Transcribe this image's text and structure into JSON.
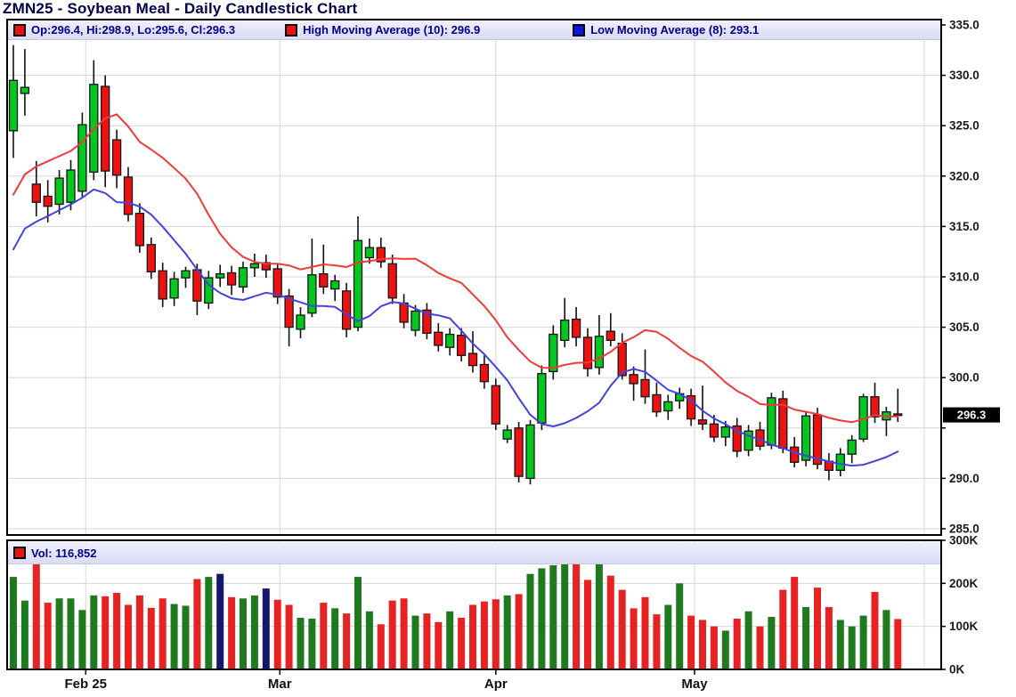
{
  "title": "ZMN25 - Soybean Meal - Daily Candlestick Chart",
  "legend": {
    "main": [
      {
        "swatch": "#ee1111",
        "label": "Op:296.4, Hi:298.9, Lo:295.6, Cl:296.3"
      },
      {
        "swatch": "#ee1111",
        "label": "High Moving Average (10): 296.9"
      },
      {
        "swatch": "#1111ee",
        "label": "Low Moving Average (8): 293.1"
      }
    ],
    "volume": [
      {
        "swatch": "#ee1111",
        "label": "Vol: 116,852"
      }
    ]
  },
  "colors": {
    "candle_up": "#00c81e",
    "candle_down": "#ee1111",
    "candle_border": "#151515",
    "wick": "#111111",
    "volume_up": "#1f7a1f",
    "volume_down": "#e62222",
    "volume_unchanged": "#16166e",
    "grid": "#d6d6d6",
    "panel_border": "#000000",
    "axis_text": "#1b1b1b",
    "tag_bg": "#000000",
    "tag_text": "#ffffff",
    "title_color": "#00004a",
    "legend_text": "#00008b"
  },
  "chart_data": {
    "type": "candlestick",
    "title": "ZMN25 - Soybean Meal - Daily Candlestick Chart",
    "symbol": "ZMN25",
    "price_axis": {
      "min": 285,
      "max": 335,
      "ticks": [
        {
          "label": "335.0",
          "value": 335
        },
        {
          "label": "330.0",
          "value": 330
        },
        {
          "label": "325.0",
          "value": 325
        },
        {
          "label": "320.0",
          "value": 320
        },
        {
          "label": "315.0",
          "value": 315
        },
        {
          "label": "310.0",
          "value": 310
        },
        {
          "label": "305.0",
          "value": 305
        },
        {
          "label": "300.0",
          "value": 300
        },
        {
          "label": "",
          "value": 295
        },
        {
          "label": "290.0",
          "value": 290
        },
        {
          "label": "285.0",
          "value": 285
        }
      ],
      "last_price": 296.3,
      "last_price_label": "296.3"
    },
    "volume_axis": {
      "unit": "K",
      "ticks": [
        {
          "label": "300K",
          "value": 300
        },
        {
          "label": "200K",
          "value": 200
        },
        {
          "label": "100K",
          "value": 100
        },
        {
          "label": "0K",
          "value": 0
        }
      ]
    },
    "x_axis": {
      "month_ticks": [
        {
          "label": "Feb 25",
          "index": 6.3
        },
        {
          "label": "Mar",
          "index": 23.2
        },
        {
          "label": "Apr",
          "index": 42.0
        },
        {
          "label": "May",
          "index": 59.3
        },
        {
          "label": "",
          "index": 79.3
        }
      ]
    },
    "ohlc_legend_values": {
      "open": 296.4,
      "high": 298.9,
      "low": 295.6,
      "close": 296.3
    },
    "last_volume": 116852,
    "candles": [
      [
        324.5,
        333.0,
        321.8,
        329.5,
        215
      ],
      [
        328.2,
        332.6,
        326.0,
        328.8,
        160
      ],
      [
        319.2,
        321.5,
        316.0,
        317.4,
        250
      ],
      [
        318.0,
        319.6,
        315.4,
        317.0,
        155
      ],
      [
        317.2,
        320.6,
        316.2,
        319.8,
        165
      ],
      [
        317.4,
        321.6,
        316.6,
        320.6,
        165
      ],
      [
        318.5,
        326.3,
        317.8,
        325.1,
        138
      ],
      [
        320.4,
        331.5,
        319.6,
        329.1,
        172
      ],
      [
        328.9,
        330.0,
        318.9,
        320.5,
        170
      ],
      [
        323.6,
        324.6,
        318.8,
        320.1,
        178
      ],
      [
        319.9,
        320.9,
        315.5,
        316.2,
        150
      ],
      [
        316.3,
        317.3,
        312.4,
        313.1,
        172
      ],
      [
        313.2,
        313.9,
        309.8,
        310.5,
        143
      ],
      [
        310.6,
        311.4,
        307.0,
        307.8,
        165
      ],
      [
        307.9,
        310.5,
        307.1,
        309.8,
        152
      ],
      [
        309.9,
        311.0,
        308.9,
        310.6,
        148
      ],
      [
        310.7,
        311.3,
        306.2,
        307.6,
        210
      ],
      [
        307.4,
        310.6,
        306.8,
        309.9,
        215
      ],
      [
        309.9,
        311.2,
        309.0,
        310.3,
        222
      ],
      [
        310.4,
        311.1,
        308.2,
        309.2,
        168
      ],
      [
        309.0,
        311.5,
        308.4,
        310.9,
        165
      ],
      [
        310.9,
        312.3,
        310.0,
        311.3,
        172
      ],
      [
        311.4,
        312.2,
        309.9,
        310.7,
        188
      ],
      [
        310.8,
        311.3,
        307.3,
        308.0,
        162
      ],
      [
        308.1,
        308.8,
        303.1,
        305.0,
        150
      ],
      [
        304.8,
        307.0,
        303.9,
        306.2,
        120
      ],
      [
        306.4,
        313.8,
        306.0,
        310.2,
        118
      ],
      [
        310.3,
        313.2,
        308.3,
        309.0,
        155
      ],
      [
        308.8,
        310.2,
        307.6,
        309.6,
        142
      ],
      [
        308.6,
        309.4,
        304.0,
        304.8,
        130
      ],
      [
        305.0,
        316.0,
        304.6,
        313.6,
        215
      ],
      [
        311.9,
        313.8,
        311.3,
        312.9,
        135
      ],
      [
        312.9,
        313.9,
        310.9,
        311.5,
        105
      ],
      [
        311.3,
        312.2,
        307.3,
        307.9,
        160
      ],
      [
        307.4,
        308.3,
        304.9,
        305.5,
        165
      ],
      [
        304.7,
        307.2,
        304.1,
        306.6,
        125
      ],
      [
        306.7,
        307.4,
        303.8,
        304.4,
        130
      ],
      [
        304.5,
        305.4,
        302.6,
        303.2,
        110
      ],
      [
        303.0,
        304.9,
        302.2,
        304.3,
        135
      ],
      [
        304.2,
        304.9,
        301.6,
        302.2,
        120
      ],
      [
        302.4,
        304.6,
        300.5,
        301.2,
        150
      ],
      [
        301.3,
        302.2,
        298.9,
        299.6,
        158
      ],
      [
        299.2,
        299.9,
        294.8,
        295.4,
        163
      ],
      [
        293.9,
        295.3,
        293.5,
        294.8,
        172
      ],
      [
        295.0,
        295.6,
        289.6,
        290.2,
        175
      ],
      [
        290.0,
        295.8,
        289.4,
        295.3,
        222
      ],
      [
        295.5,
        301.2,
        294.8,
        300.4,
        235
      ],
      [
        300.6,
        305.2,
        299.8,
        304.3,
        242
      ],
      [
        303.7,
        307.9,
        303.0,
        305.7,
        258
      ],
      [
        305.8,
        307.0,
        303.1,
        304.0,
        252
      ],
      [
        304.0,
        304.9,
        300.1,
        300.9,
        208
      ],
      [
        301.0,
        306.2,
        300.3,
        304.1,
        255
      ],
      [
        304.6,
        306.4,
        303.1,
        303.7,
        218
      ],
      [
        303.4,
        304.4,
        299.8,
        300.2,
        185
      ],
      [
        300.3,
        301.1,
        297.7,
        299.4,
        142
      ],
      [
        299.8,
        302.8,
        297.4,
        298.1,
        168
      ],
      [
        298.3,
        299.5,
        296.1,
        296.6,
        128
      ],
      [
        296.7,
        298.3,
        295.8,
        297.6,
        150
      ],
      [
        297.7,
        299.0,
        296.9,
        298.4,
        200
      ],
      [
        298.2,
        298.9,
        295.2,
        295.9,
        125
      ],
      [
        295.8,
        299.2,
        294.8,
        295.4,
        115
      ],
      [
        295.4,
        296.3,
        293.6,
        294.1,
        100
      ],
      [
        294.1,
        295.7,
        293.2,
        295.1,
        90
      ],
      [
        295.2,
        296.0,
        292.1,
        292.7,
        118
      ],
      [
        292.8,
        295.3,
        292.2,
        294.7,
        135
      ],
      [
        294.8,
        295.6,
        292.8,
        293.2,
        100
      ],
      [
        293.3,
        298.5,
        292.9,
        298.0,
        122
      ],
      [
        297.9,
        298.7,
        292.5,
        293.0,
        185
      ],
      [
        293.1,
        294.1,
        291.1,
        291.6,
        215
      ],
      [
        291.8,
        296.7,
        291.2,
        296.2,
        145
      ],
      [
        296.3,
        297.0,
        290.9,
        291.4,
        190
      ],
      [
        291.7,
        292.5,
        289.8,
        290.8,
        145
      ],
      [
        290.8,
        293.0,
        290.2,
        292.4,
        115
      ],
      [
        292.4,
        294.3,
        291.5,
        293.8,
        100
      ],
      [
        293.9,
        298.4,
        293.6,
        298.1,
        125
      ],
      [
        298.1,
        299.5,
        295.5,
        296.1,
        180
      ],
      [
        295.8,
        297.1,
        294.2,
        296.6,
        138
      ],
      [
        296.4,
        298.9,
        295.6,
        296.3,
        117
      ]
    ],
    "volume_unchanged_indexes": [
      18,
      22
    ],
    "moving_averages": [
      {
        "name": "High Moving Average (10)",
        "period": 10,
        "source": "high",
        "color": "#f03a3a",
        "seed": [
          312.5,
          313.5,
          314.5,
          315.5,
          316.5,
          317.5,
          318.5,
          319.5,
          320.5
        ],
        "last_value": 296.9
      },
      {
        "name": "Low Moving Average (8)",
        "period": 8,
        "source": "low",
        "color": "#4343de",
        "seed": [
          309.5,
          310.5,
          311.0,
          311.5,
          312.0,
          312.5,
          313.0
        ],
        "last_value": 293.1
      }
    ]
  }
}
